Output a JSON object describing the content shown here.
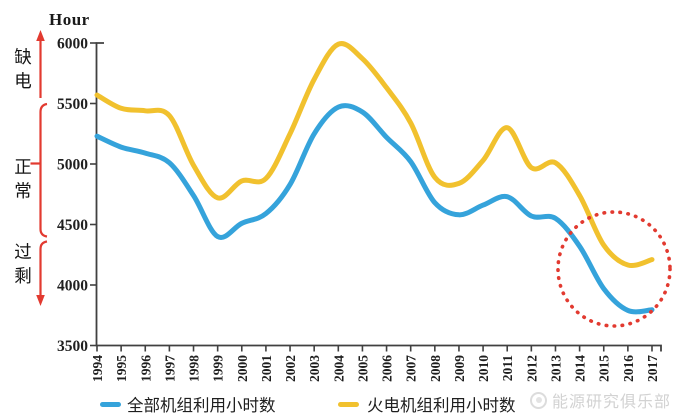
{
  "colors": {
    "all_units_line": "#35A3DB",
    "thermal_units_line": "#F1C12E",
    "annotation_red": "#E23A30",
    "axis": "#404040",
    "watermark_gray": "#D2D2D2"
  },
  "watermark": {
    "text": "能源研究俱乐部"
  },
  "chart_data": {
    "type": "line",
    "title": "",
    "ylabel": "Hour",
    "ylim": [
      3500,
      6000
    ],
    "ytick_interval": 500,
    "grid": false,
    "legend_position": "bottom",
    "x": [
      1994,
      1995,
      1996,
      1997,
      1998,
      1999,
      2000,
      2001,
      2002,
      2003,
      2004,
      2005,
      2006,
      2007,
      2008,
      2009,
      2010,
      2011,
      2012,
      2013,
      2014,
      2015,
      2016,
      2017
    ],
    "series": [
      {
        "name": "全部机组利用小时数",
        "color": "#35A3DB",
        "values": [
          5230,
          5140,
          5090,
          5010,
          4740,
          4400,
          4510,
          4590,
          4830,
          5250,
          5470,
          5430,
          5220,
          5020,
          4680,
          4580,
          4660,
          4730,
          4570,
          4550,
          4320,
          3970,
          3790,
          3795
        ]
      },
      {
        "name": "火电机组利用小时数",
        "color": "#F1C12E",
        "values": [
          5570,
          5460,
          5440,
          5400,
          4990,
          4720,
          4860,
          4880,
          5250,
          5700,
          5990,
          5870,
          5630,
          5340,
          4890,
          4840,
          5030,
          5300,
          4970,
          5010,
          4740,
          4330,
          4165,
          4210
        ]
      }
    ],
    "annotations": {
      "zone_axis_labels": [
        {
          "text": "缺电",
          "y_range": [
            5500,
            6000
          ],
          "marker": "red-up-arrow"
        },
        {
          "text": "正常",
          "y_range": [
            4500,
            5500
          ],
          "marker": "red-bracket"
        },
        {
          "text": "过剩",
          "y_range": [
            3500,
            4500
          ],
          "marker": "red-down-arrow"
        }
      ],
      "highlight": {
        "shape": "red-dotted-circle",
        "x_range": [
          2013.5,
          2017
        ],
        "y_range": [
          3780,
          4740
        ]
      }
    }
  }
}
